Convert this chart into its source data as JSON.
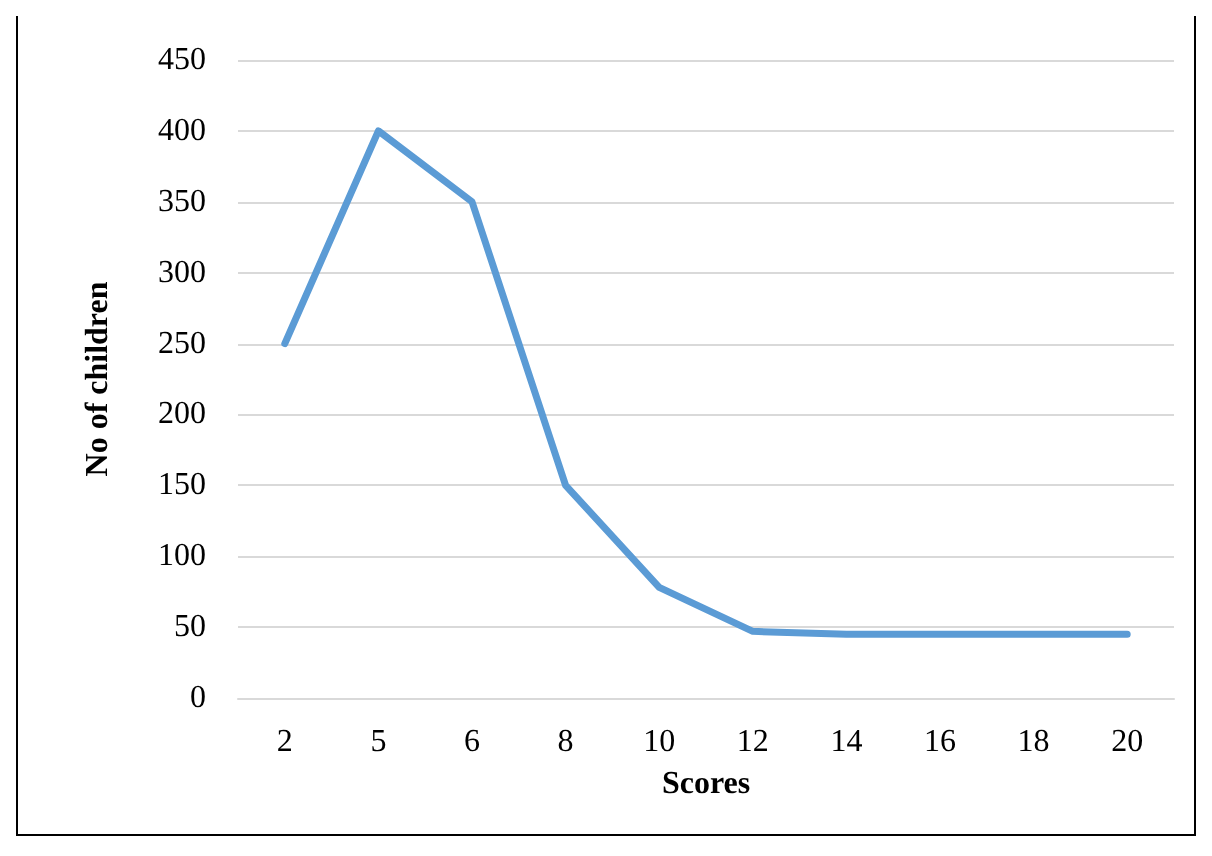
{
  "chart_data": {
    "type": "line",
    "xlabel": "Scores",
    "ylabel": "No of children",
    "categories": [
      "2",
      "5",
      "6",
      "8",
      "10",
      "12",
      "14",
      "16",
      "18",
      "20"
    ],
    "series": [
      {
        "color": "#5b9bd5",
        "values": [
          250,
          400,
          350,
          150,
          78,
          47,
          45,
          45,
          45,
          45
        ]
      }
    ],
    "ylim": [
      0,
      450
    ],
    "yticks": [
      0,
      50,
      100,
      150,
      200,
      250,
      300,
      350,
      400,
      450
    ],
    "grid": "y",
    "marker": "none",
    "line_style": "solid"
  }
}
